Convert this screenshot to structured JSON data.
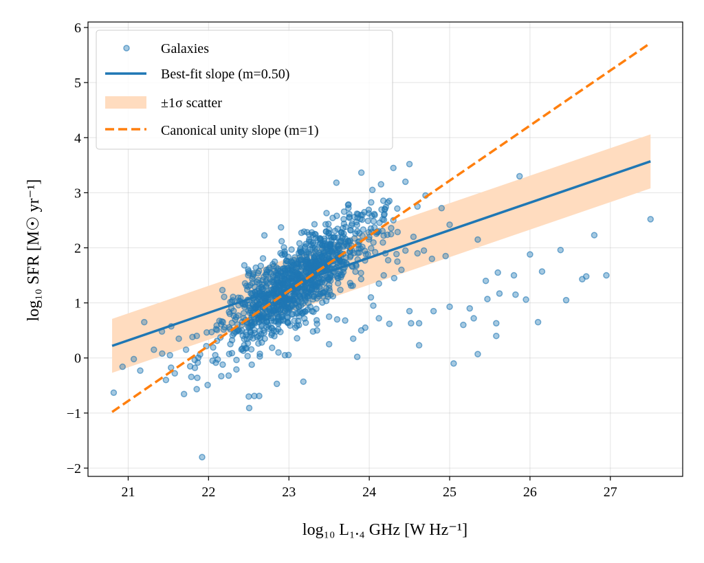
{
  "chart_data": {
    "type": "scatter",
    "xlabel": "log₁₀ L₁.₄ GHz [W Hz⁻¹]",
    "ylabel": "log₁₀ SFR [M☉ yr⁻¹]",
    "xlim": [
      20.5,
      27.9
    ],
    "ylim": [
      -2.15,
      6.1
    ],
    "x_ticks": [
      21,
      22,
      23,
      24,
      25,
      26,
      27
    ],
    "y_ticks": [
      -2,
      -1,
      0,
      1,
      2,
      3,
      4,
      5,
      6
    ],
    "x_tick_labels": [
      "21",
      "22",
      "23",
      "24",
      "25",
      "26",
      "27"
    ],
    "y_tick_labels": [
      "−2",
      "−1",
      "0",
      "1",
      "2",
      "3",
      "4",
      "5",
      "6"
    ],
    "grid": true,
    "legend_position": "top-left",
    "legend": [
      {
        "label": "Galaxies",
        "kind": "marker"
      },
      {
        "label": "Best-fit slope (m=0.50)",
        "kind": "line"
      },
      {
        "label": "±1σ scatter",
        "kind": "band"
      },
      {
        "label": "Canonical unity slope (m=1)",
        "kind": "dashed"
      }
    ],
    "colors": {
      "galaxies": "#1f77b4",
      "best_fit": "#1f77b4",
      "scatter_band": "#ffdcbf",
      "unity": "#ff7f0e"
    },
    "best_fit": {
      "slope": 0.5,
      "intercept": -10.18,
      "x_range": [
        20.8,
        27.5
      ]
    },
    "scatter_band": {
      "sigma": 0.49,
      "x_range": [
        20.8,
        27.5
      ]
    },
    "unity_line": {
      "slope": 1.0,
      "intercept": -21.78,
      "x_range": [
        20.8,
        27.5
      ]
    },
    "galaxies": {
      "core_sample": {
        "n": 1150,
        "x_mean": 23.1,
        "x_sd": 0.48,
        "slope": 1.0,
        "intercept": -21.72,
        "y_sd": 0.36,
        "x_range": [
          21.4,
          24.6
        ],
        "seed": 7
      },
      "outliers": [
        [
          20.82,
          -0.63
        ],
        [
          20.93,
          -0.16
        ],
        [
          21.07,
          -0.02
        ],
        [
          21.15,
          -0.23
        ],
        [
          21.2,
          0.65
        ],
        [
          21.32,
          0.15
        ],
        [
          21.42,
          0.48
        ],
        [
          21.47,
          -0.4
        ],
        [
          21.52,
          0.05
        ],
        [
          21.58,
          -0.28
        ],
        [
          21.63,
          0.35
        ],
        [
          21.72,
          0.15
        ],
        [
          21.8,
          0.38
        ],
        [
          21.83,
          -0.18
        ],
        [
          21.86,
          -0.36
        ],
        [
          21.92,
          -1.8
        ],
        [
          22.05,
          -0.05
        ],
        [
          22.25,
          -0.32
        ],
        [
          22.5,
          -0.7
        ],
        [
          22.57,
          -0.69
        ],
        [
          22.63,
          -0.69
        ],
        [
          22.7,
          0.35
        ],
        [
          22.85,
          -0.47
        ],
        [
          22.87,
          0.1
        ],
        [
          22.95,
          0.05
        ],
        [
          23.18,
          -0.43
        ],
        [
          23.35,
          0.5
        ],
        [
          23.5,
          0.25
        ],
        [
          23.8,
          0.35
        ],
        [
          23.85,
          0.02
        ],
        [
          24.05,
          0.95
        ],
        [
          24.12,
          0.72
        ],
        [
          24.25,
          0.62
        ],
        [
          24.31,
          1.45
        ],
        [
          24.45,
          1.95
        ],
        [
          24.5,
          0.85
        ],
        [
          24.52,
          0.63
        ],
        [
          24.62,
          0.63
        ],
        [
          24.62,
          0.23
        ],
        [
          24.78,
          1.8
        ],
        [
          24.8,
          0.85
        ],
        [
          24.95,
          1.85
        ],
        [
          25.0,
          0.93
        ],
        [
          25.05,
          -0.1
        ],
        [
          25.17,
          0.6
        ],
        [
          25.25,
          0.9
        ],
        [
          25.3,
          0.72
        ],
        [
          25.35,
          0.07
        ],
        [
          25.45,
          1.4
        ],
        [
          25.47,
          1.07
        ],
        [
          25.58,
          0.63
        ],
        [
          25.58,
          0.4
        ],
        [
          25.6,
          1.55
        ],
        [
          25.62,
          1.17
        ],
        [
          25.8,
          1.5
        ],
        [
          25.82,
          1.15
        ],
        [
          25.95,
          1.06
        ],
        [
          26.0,
          1.88
        ],
        [
          26.1,
          0.65
        ],
        [
          26.15,
          1.57
        ],
        [
          26.38,
          1.96
        ],
        [
          26.45,
          1.05
        ],
        [
          26.65,
          1.43
        ],
        [
          26.7,
          1.48
        ],
        [
          26.8,
          2.23
        ],
        [
          26.95,
          1.5
        ],
        [
          27.5,
          2.52
        ],
        [
          24.02,
          2.35
        ],
        [
          24.3,
          2.5
        ],
        [
          24.55,
          2.2
        ],
        [
          24.25,
          2.85
        ],
        [
          24.3,
          3.45
        ],
        [
          24.45,
          3.2
        ],
        [
          24.5,
          3.52
        ],
        [
          24.6,
          2.75
        ],
        [
          24.7,
          2.95
        ],
        [
          24.9,
          2.72
        ],
        [
          25.0,
          2.42
        ],
        [
          25.35,
          2.15
        ],
        [
          25.87,
          3.3
        ],
        [
          24.2,
          1.9
        ],
        [
          24.35,
          1.75
        ],
        [
          24.4,
          1.6
        ],
        [
          24.6,
          1.9
        ],
        [
          24.68,
          1.95
        ],
        [
          24.12,
          1.35
        ],
        [
          24.18,
          1.5
        ],
        [
          24.02,
          1.1
        ],
        [
          23.95,
          0.55
        ],
        [
          23.9,
          0.5
        ],
        [
          23.7,
          0.68
        ],
        [
          23.6,
          0.7
        ],
        [
          23.5,
          0.75
        ],
        [
          23.35,
          0.62
        ],
        [
          23.3,
          0.48
        ]
      ]
    }
  }
}
